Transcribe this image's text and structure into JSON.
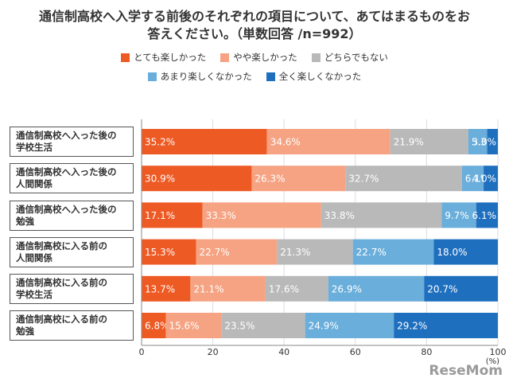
{
  "title_lines": [
    "通信制高校へ入学する前後のそれぞれの項目について、あてはまるものをお",
    "答えください。（単数回答 /n=992）"
  ],
  "legend": [
    {
      "label": "とても楽しかった",
      "color": "#ee5a24"
    },
    {
      "label": "やや楽しかった",
      "color": "#f5a383"
    },
    {
      "label": "どちらでもない",
      "color": "#b9b9b9"
    },
    {
      "label": "あまり楽しくなかった",
      "color": "#6aaedb"
    },
    {
      "label": "全く楽しくなかった",
      "color": "#1f6fbf"
    }
  ],
  "source": "ReseMom",
  "chart_data": {
    "type": "bar",
    "orientation": "horizontal",
    "stacked": true,
    "xlim": [
      0,
      100
    ],
    "xticks": [
      "0",
      "20",
      "40",
      "60",
      "80",
      "100"
    ],
    "xunit": "(%)",
    "categories": [
      [
        "通信制高校へ入った後の",
        "学校生活"
      ],
      [
        "通信制高校へ入った後の",
        "人間関係"
      ],
      [
        "通信制高校へ入った後の",
        "勉強"
      ],
      [
        "通信制高校に入る前の",
        "人間関係"
      ],
      [
        "通信制高校に入る前の",
        "学校生活"
      ],
      [
        "通信制高校に入る前の",
        "勉強"
      ]
    ],
    "series": [
      {
        "name": "とても楽しかった",
        "values": [
          35.2,
          30.9,
          17.1,
          15.3,
          13.7,
          6.8
        ]
      },
      {
        "name": "やや楽しかった",
        "values": [
          34.6,
          26.3,
          33.3,
          22.7,
          21.1,
          15.6
        ]
      },
      {
        "name": "どちらでもない",
        "values": [
          21.9,
          32.7,
          33.8,
          21.3,
          17.6,
          23.5
        ]
      },
      {
        "name": "あまり楽しくなかった",
        "values": [
          5.3,
          6.1,
          9.7,
          22.7,
          26.9,
          24.9
        ]
      },
      {
        "name": "全く楽しくなかった",
        "values": [
          3.0,
          4.0,
          6.1,
          18.0,
          20.7,
          29.2
        ]
      }
    ],
    "value_labels": [
      [
        "35.2%",
        "34.6%",
        "21.9%",
        "5.3%",
        "3.0%"
      ],
      [
        "30.9%",
        "26.3%",
        "32.7%",
        "6.1%",
        "4.0%"
      ],
      [
        "17.1%",
        "33.3%",
        "33.8%",
        "9.7%",
        "6.1%"
      ],
      [
        "15.3%",
        "22.7%",
        "21.3%",
        "22.7%",
        "18.0%"
      ],
      [
        "13.7%",
        "21.1%",
        "17.6%",
        "26.9%",
        "20.7%"
      ],
      [
        "6.8%",
        "15.6%",
        "23.5%",
        "24.9%",
        "29.2%"
      ]
    ],
    "grid": true
  }
}
